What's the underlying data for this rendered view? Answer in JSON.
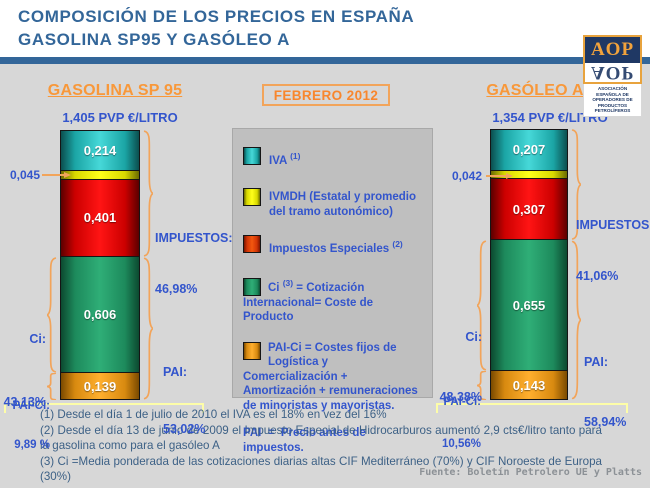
{
  "header": {
    "title_line1": "COMPOSICIÓN DE LOS PRECIOS EN ESPAÑA",
    "title_line2": "GASOLINA SP95 Y GASÓLEO A"
  },
  "logo": {
    "acronym": "AOP",
    "full_name": "ASOCIACIÓN ESPAÑOLA DE OPERADORES DE PRODUCTOS PETROLÍFEROS"
  },
  "period_label": "FEBRERO 2012",
  "colors": {
    "iva": "#2FBFBF",
    "ivmdh": "#F2F20A",
    "impuestos_especiales": "#E02A00",
    "ci": "#1FA878",
    "pai_ci": "#F09A3C",
    "accent_orange": "#F2A45A",
    "title_blue": "#336699",
    "label_blue": "#3355CC"
  },
  "chart_data": {
    "type": "bar",
    "stacked": true,
    "unit": "€/litro",
    "categories": [
      "GASOLINA SP 95",
      "GASÓLEO A"
    ],
    "series_order": "top-to-bottom",
    "series": [
      {
        "name": "IVA",
        "values": [
          0.214,
          0.207
        ]
      },
      {
        "name": "IVMDH",
        "values": [
          0.045,
          0.042
        ]
      },
      {
        "name": "Impuestos Especiales",
        "values": [
          0.401,
          0.307
        ]
      },
      {
        "name": "Ci",
        "values": [
          0.606,
          0.655
        ]
      },
      {
        "name": "PAI-Ci",
        "values": [
          0.139,
          0.143
        ]
      }
    ],
    "totals_eur_litro": [
      1.405,
      1.354
    ],
    "percentages": {
      "impuestos": [
        "46,98%",
        "41,06%"
      ],
      "pai": [
        "53,02%",
        "58,94%"
      ],
      "ci": [
        "43,13%",
        "48,38%"
      ],
      "pai_ci": [
        "9,89 %",
        "10,56%"
      ]
    },
    "legend_position": "center",
    "grid": false
  },
  "gasolina": {
    "title": "GASOLINA SP 95",
    "pvp": "1,405 PVP €/LITRO",
    "seg_labels": {
      "iva": "0,214",
      "iiee": "0,401",
      "ci": "0,606",
      "pai_ci": "0,139"
    },
    "ivmdh_value": "0,045",
    "impuestos_label": "IMPUESTOS:",
    "impuestos_pct": "46,98%",
    "pai_label": "PAI:",
    "pai_pct": "53,02%",
    "ci_label": "Ci:",
    "ci_pct": "43,13%",
    "paici_label": "PAI-Ci:",
    "paici_pct": "9,89 %"
  },
  "gasoleo": {
    "title": "GASÓLEO A",
    "pvp": "1,354 PVP €/LITRO",
    "seg_labels": {
      "iva": "0,207",
      "iiee": "0,307",
      "ci": "0,655",
      "pai_ci": "0,143"
    },
    "ivmdh_value": "0,042",
    "impuestos_label": "IMPUESTOS:",
    "impuestos_pct": "41,06%",
    "pai_label": "PAI:",
    "pai_pct": "58,94%",
    "ci_label": "Ci:",
    "ci_pct": "48,38%",
    "paici_label": "PAI-Ci:",
    "paici_pct": "10,56%"
  },
  "legend": {
    "items": [
      {
        "pre": "IVA ",
        "sup": "(1)",
        "post": ""
      },
      {
        "pre": "IVMDH (Estatal y promedio del tramo autonómico)",
        "sup": "",
        "post": ""
      },
      {
        "pre": "Impuestos Especiales ",
        "sup": "(2)",
        "post": ""
      },
      {
        "pre": "Ci ",
        "sup": "(3)",
        "post": " = Cotización Internacional= Coste de Producto"
      },
      {
        "pre": "PAI-Ci = Costes fijos de Logística y Comercialización + Amortización + remuneraciones de minoristas y mayoristas.",
        "sup": "",
        "post": ""
      }
    ],
    "footer": "PAI  =  Precio antes de impuestos."
  },
  "footnotes": [
    "(1) Desde el día 1 de julio de 2010 el IVA es el 18% en vez del 16%",
    "(2) Desde el día 13 de junio de 2009 el Impuesto Especial de Hidrocarburos aumentó 2,9 cts€/litro tanto para la gasolina como para el gasóleo A",
    "(3) Ci =Media ponderada de las cotizaciones diarias altas CIF Mediterráneo (70%) y CIF Noroeste de Europa (30%)"
  ],
  "source": "Fuente: Boletín Petrolero UE y Platts"
}
